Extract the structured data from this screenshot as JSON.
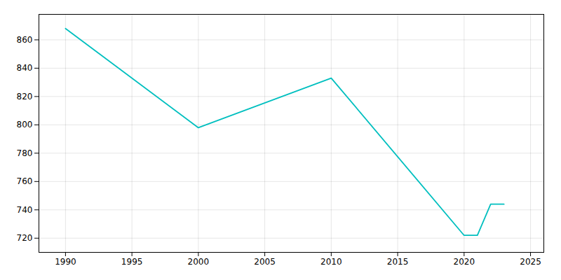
{
  "chart_data": {
    "type": "line",
    "x": [
      1990,
      2000,
      2010,
      2020,
      2021,
      2022,
      2023
    ],
    "values": [
      868,
      798,
      833,
      722,
      722,
      744,
      744
    ],
    "color": "#00BFBF",
    "xlim": [
      1988,
      2026
    ],
    "ylim": [
      710,
      878
    ],
    "xticks": [
      1990,
      1995,
      2000,
      2005,
      2010,
      2015,
      2020,
      2025
    ],
    "yticks": [
      720,
      740,
      760,
      780,
      800,
      820,
      840,
      860
    ],
    "grid": true
  }
}
